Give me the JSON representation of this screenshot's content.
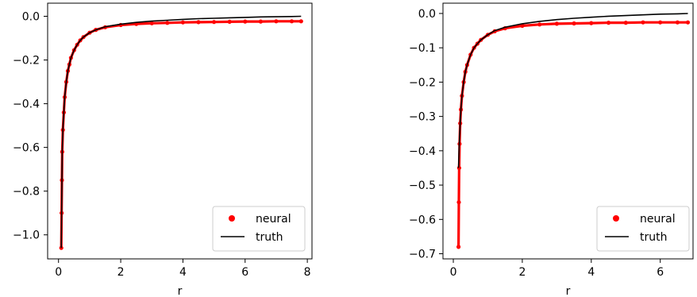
{
  "chart_data": [
    {
      "type": "line",
      "xlabel": "r",
      "ylabel": "",
      "xlim": [
        -0.35,
        8.15
      ],
      "ylim": [
        -1.11,
        0.06
      ],
      "xticks": [
        0,
        2,
        4,
        6,
        8
      ],
      "yticks": [
        0.0,
        -0.2,
        -0.4,
        -0.6,
        -0.8,
        -1.0
      ],
      "xtick_labels": [
        "0",
        "2",
        "4",
        "6",
        "8"
      ],
      "ytick_labels": [
        "0.0",
        "−0.2",
        "−0.4",
        "−0.6",
        "−0.8",
        "−1.0"
      ],
      "legend": {
        "placement": "lower-right",
        "entries": [
          "neural",
          "truth"
        ]
      },
      "series": [
        {
          "name": "neural",
          "color": "#ff0000",
          "x": [
            0.09,
            0.1,
            0.11,
            0.12,
            0.14,
            0.17,
            0.2,
            0.25,
            0.3,
            0.35,
            0.4,
            0.5,
            0.6,
            0.7,
            0.8,
            1.0,
            1.2,
            1.5,
            2.0,
            2.5,
            3.0,
            3.5,
            4.0,
            4.5,
            5.0,
            5.5,
            6.0,
            6.5,
            7.0,
            7.5,
            7.8
          ],
          "y": [
            -1.06,
            -0.9,
            -0.75,
            -0.62,
            -0.52,
            -0.44,
            -0.37,
            -0.3,
            -0.25,
            -0.22,
            -0.19,
            -0.155,
            -0.13,
            -0.11,
            -0.095,
            -0.075,
            -0.062,
            -0.05,
            -0.04,
            -0.035,
            -0.032,
            -0.03,
            -0.028,
            -0.027,
            -0.026,
            -0.025,
            -0.024,
            -0.024,
            -0.023,
            -0.023,
            -0.023
          ]
        },
        {
          "name": "truth",
          "color": "#000000",
          "x": [
            0.09,
            0.1,
            0.11,
            0.12,
            0.14,
            0.17,
            0.2,
            0.25,
            0.3,
            0.35,
            0.4,
            0.5,
            0.6,
            0.7,
            0.8,
            1.0,
            1.2,
            1.5,
            2.0,
            2.5,
            3.0,
            3.5,
            4.0,
            4.5,
            5.0,
            5.5,
            6.0,
            6.5,
            7.0,
            7.5,
            7.8
          ],
          "y": [
            -1.06,
            -0.9,
            -0.75,
            -0.62,
            -0.52,
            -0.44,
            -0.37,
            -0.3,
            -0.25,
            -0.22,
            -0.19,
            -0.155,
            -0.13,
            -0.11,
            -0.095,
            -0.075,
            -0.062,
            -0.048,
            -0.036,
            -0.028,
            -0.022,
            -0.018,
            -0.014,
            -0.011,
            -0.009,
            -0.007,
            -0.005,
            -0.003,
            -0.002,
            -0.001,
            0.0
          ]
        }
      ]
    },
    {
      "type": "line",
      "xlabel": "r",
      "ylabel": "",
      "xlim": [
        -0.3,
        6.95
      ],
      "ylim": [
        -0.715,
        0.03
      ],
      "xticks": [
        0,
        2,
        4,
        6
      ],
      "yticks": [
        0.0,
        -0.1,
        -0.2,
        -0.3,
        -0.4,
        -0.5,
        -0.6,
        -0.7
      ],
      "xtick_labels": [
        "0",
        "2",
        "4",
        "6"
      ],
      "ytick_labels": [
        "0.0",
        "−0.1",
        "−0.2",
        "−0.3",
        "−0.4",
        "−0.5",
        "−0.6",
        "−0.7"
      ],
      "legend": {
        "placement": "lower-right",
        "entries": [
          "neural",
          "truth"
        ]
      },
      "series": [
        {
          "name": "neural",
          "color": "#ff0000",
          "x": [
            0.15,
            0.16,
            0.17,
            0.18,
            0.2,
            0.22,
            0.25,
            0.3,
            0.35,
            0.4,
            0.5,
            0.6,
            0.7,
            0.8,
            1.0,
            1.2,
            1.5,
            2.0,
            2.5,
            3.0,
            3.5,
            4.0,
            4.5,
            5.0,
            5.5,
            6.0,
            6.5,
            6.8
          ],
          "y": [
            -0.68,
            -0.55,
            -0.45,
            -0.38,
            -0.32,
            -0.28,
            -0.24,
            -0.2,
            -0.17,
            -0.15,
            -0.12,
            -0.1,
            -0.088,
            -0.077,
            -0.062,
            -0.052,
            -0.043,
            -0.036,
            -0.032,
            -0.03,
            -0.029,
            -0.028,
            -0.027,
            -0.027,
            -0.026,
            -0.026,
            -0.026,
            -0.026
          ]
        },
        {
          "name": "truth",
          "color": "#000000",
          "x": [
            0.15,
            0.16,
            0.17,
            0.18,
            0.2,
            0.22,
            0.25,
            0.3,
            0.35,
            0.4,
            0.5,
            0.6,
            0.7,
            0.8,
            1.0,
            1.2,
            1.5,
            2.0,
            2.5,
            3.0,
            3.5,
            4.0,
            4.5,
            5.0,
            5.5,
            6.0,
            6.5,
            6.8
          ],
          "y": [
            -0.45,
            -0.42,
            -0.39,
            -0.36,
            -0.32,
            -0.28,
            -0.24,
            -0.2,
            -0.17,
            -0.15,
            -0.12,
            -0.1,
            -0.088,
            -0.077,
            -0.062,
            -0.05,
            -0.04,
            -0.03,
            -0.023,
            -0.018,
            -0.014,
            -0.011,
            -0.008,
            -0.006,
            -0.004,
            -0.002,
            -0.001,
            0.0
          ]
        }
      ]
    }
  ]
}
